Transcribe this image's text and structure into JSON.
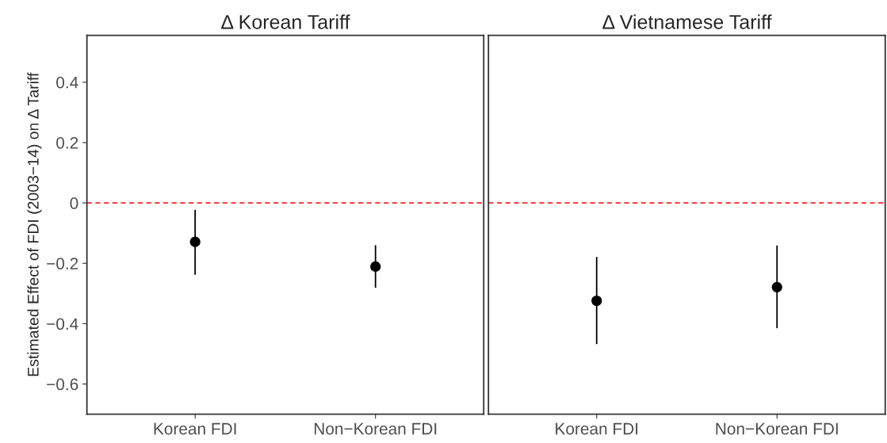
{
  "chart_data": [
    {
      "type": "scatter",
      "title": "Δ Korean Tariff",
      "ylabel": "Estimated Effect of FDI (2003−14) on Δ Tariff",
      "categories": [
        "Korean FDI",
        "Non−Korean FDI"
      ],
      "series": [
        {
          "color": "#000000",
          "values": [
            -0.129,
            -0.211
          ],
          "errors": [
            [
              -0.238,
              -0.023
            ],
            [
              -0.281,
              -0.14
            ]
          ]
        }
      ],
      "ylim": [
        -0.7,
        0.555
      ],
      "yticks": [
        {
          "value": -0.6,
          "label": "−0.6"
        },
        {
          "value": -0.4,
          "label": "−0.4"
        },
        {
          "value": -0.2,
          "label": "−0.2"
        },
        0,
        0.2,
        0.4
      ],
      "ref_lines": [
        {
          "axis": "y",
          "value": 0,
          "color": "#ff0000",
          "line_style": "dashed"
        }
      ],
      "marker": "circle",
      "grid": false
    },
    {
      "type": "scatter",
      "title": "Δ Vietnamese Tariff",
      "categories": [
        "Korean FDI",
        "Non−Korean FDI"
      ],
      "series": [
        {
          "color": "#000000",
          "values": [
            -0.324,
            -0.279
          ],
          "errors": [
            [
              -0.468,
              -0.179
            ],
            [
              -0.415,
              -0.141
            ]
          ]
        }
      ],
      "ylim": [
        -0.7,
        0.555
      ],
      "ref_lines": [
        {
          "axis": "y",
          "value": 0,
          "color": "#ff0000",
          "line_style": "dashed"
        }
      ],
      "marker": "circle",
      "grid": false,
      "tick_labels": "x"
    }
  ]
}
